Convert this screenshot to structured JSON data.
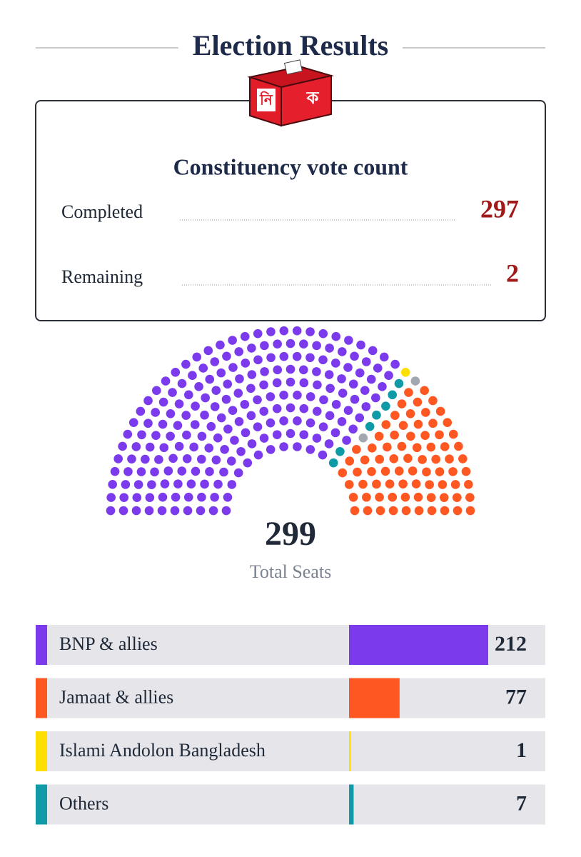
{
  "header": {
    "title": "Election Results"
  },
  "ballot_icon": {
    "left": "নি",
    "right": "ক"
  },
  "vote_count": {
    "title": "Constituency vote count",
    "completed": {
      "label": "Completed",
      "value": 297
    },
    "remaining": {
      "label": "Remaining",
      "value": 2,
      "color": "#a3a8b0"
    }
  },
  "chart_data": {
    "type": "parliament",
    "total": 299,
    "total_label": "Total Seats",
    "series": [
      {
        "name": "BNP & allies",
        "color": "#7c3aed",
        "value": 212
      },
      {
        "name": "Jamaat & allies",
        "color": "#ff5722",
        "value": 77
      },
      {
        "name": "Islami Andolon Bangladesh",
        "color": "#fde000",
        "value": 1
      },
      {
        "name": "Others",
        "color": "#0e9aa7",
        "value": 7
      }
    ]
  }
}
